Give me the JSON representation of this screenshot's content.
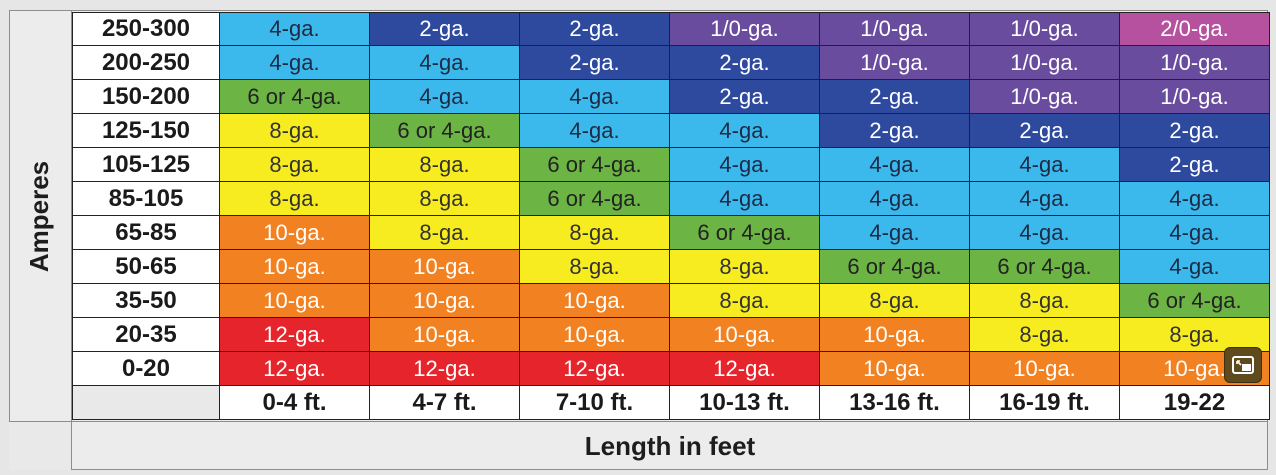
{
  "chart_data": {
    "type": "table",
    "ylabel": "Amperes",
    "xlabel": "Length in feet",
    "rows": [
      "250-300",
      "200-250",
      "150-200",
      "125-150",
      "105-125",
      "85-105",
      "65-85",
      "50-65",
      "35-50",
      "20-35",
      "0-20"
    ],
    "columns": [
      "0-4 ft.",
      "4-7 ft.",
      "7-10 ft.",
      "10-13 ft.",
      "13-16 ft.",
      "16-19 ft.",
      "19-22"
    ],
    "values": [
      [
        "4-ga.",
        "2-ga.",
        "2-ga.",
        "1/0-ga.",
        "1/0-ga.",
        "1/0-ga.",
        "2/0-ga."
      ],
      [
        "4-ga.",
        "4-ga.",
        "2-ga.",
        "2-ga.",
        "1/0-ga.",
        "1/0-ga.",
        "1/0-ga."
      ],
      [
        "6 or 4-ga.",
        "4-ga.",
        "4-ga.",
        "2-ga.",
        "2-ga.",
        "1/0-ga.",
        "1/0-ga."
      ],
      [
        "8-ga.",
        "6 or 4-ga.",
        "4-ga.",
        "4-ga.",
        "2-ga.",
        "2-ga.",
        "2-ga."
      ],
      [
        "8-ga.",
        "8-ga.",
        "6 or 4-ga.",
        "4-ga.",
        "4-ga.",
        "4-ga.",
        "2-ga."
      ],
      [
        "8-ga.",
        "8-ga.",
        "6 or 4-ga.",
        "4-ga.",
        "4-ga.",
        "4-ga.",
        "4-ga."
      ],
      [
        "10-ga.",
        "8-ga.",
        "8-ga.",
        "6 or 4-ga.",
        "4-ga.",
        "4-ga.",
        "4-ga."
      ],
      [
        "10-ga.",
        "10-ga.",
        "8-ga.",
        "8-ga.",
        "6 or 4-ga.",
        "6 or 4-ga.",
        "4-ga."
      ],
      [
        "10-ga.",
        "10-ga.",
        "10-ga.",
        "8-ga.",
        "8-ga.",
        "8-ga.",
        "6 or 4-ga."
      ],
      [
        "12-ga.",
        "10-ga.",
        "10-ga.",
        "10-ga.",
        "10-ga.",
        "8-ga.",
        "8-ga."
      ],
      [
        "12-ga.",
        "12-ga.",
        "12-ga.",
        "12-ga.",
        "10-ga.",
        "10-ga.",
        "10-ga."
      ]
    ],
    "gauge_colors": {
      "12-ga.": {
        "bg": "#e5242b",
        "fg": "#ffffff"
      },
      "10-ga.": {
        "bg": "#f28121",
        "fg": "#ffffff"
      },
      "8-ga.": {
        "bg": "#f7ec20",
        "fg": "#333333"
      },
      "6 or 4-ga.": {
        "bg": "#6cb545",
        "fg": "#222222"
      },
      "4-ga.": {
        "bg": "#3bb9ec",
        "fg": "#1f2a44"
      },
      "2-ga.": {
        "bg": "#2e4a9e",
        "fg": "#ffffff"
      },
      "1/0-ga.": {
        "bg": "#6a4c9e",
        "fg": "#ffffff"
      },
      "2/0-ga.": {
        "bg": "#b5519f",
        "fg": "#ffffff"
      }
    }
  },
  "overlay": {
    "icon": "picture-in-picture-icon"
  }
}
